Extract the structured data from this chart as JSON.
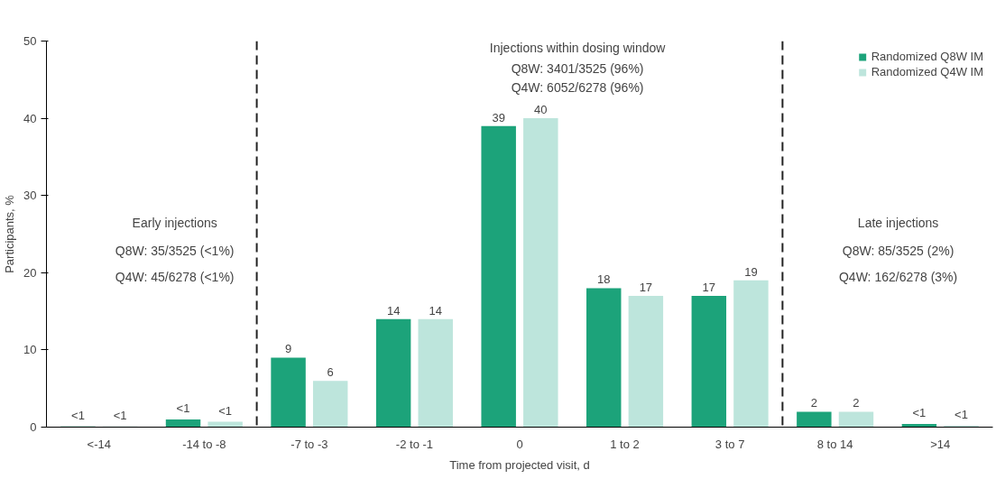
{
  "chart_data": {
    "type": "bar",
    "xlabel": "Time from projected visit, d",
    "ylabel": "Participants, %",
    "categories": [
      "<-14",
      "-14 to -8",
      "-7 to -3",
      "-2 to -1",
      "0",
      "1 to 2",
      "3 to 7",
      "8 to 14",
      ">14"
    ],
    "series": [
      {
        "name": "Randomized Q8W IM",
        "color": "#1ca37a",
        "values": [
          0.1,
          1,
          9,
          14,
          39,
          18,
          17,
          2,
          0.4
        ],
        "value_labels": [
          "<1",
          "<1",
          "9",
          "14",
          "39",
          "18",
          "17",
          "2",
          "<1"
        ]
      },
      {
        "name": "Randomized Q4W IM",
        "color": "#bde5dc",
        "values": [
          0.1,
          0.7,
          6,
          14,
          40,
          17,
          19,
          2,
          0.2
        ],
        "value_labels": [
          "<1",
          "<1",
          "6",
          "14",
          "40",
          "17",
          "19",
          "2",
          "<1"
        ]
      }
    ],
    "ylim": [
      0,
      50
    ],
    "yticks": [
      0,
      10,
      20,
      30,
      40,
      50
    ],
    "grid": false,
    "legend": "top right",
    "annotations": [
      "Early injections",
      "Q8W: 35/3525 (<1%)",
      "Q4W: 45/6278 (<1%)",
      "Injections within dosing window",
      "Q8W: 3401/3525 (96%)",
      "Q4W: 6052/6278 (96%)",
      "Late injections",
      "Q8W: 85/3525 (2%)",
      "Q4W: 162/6278 (3%)"
    ]
  }
}
